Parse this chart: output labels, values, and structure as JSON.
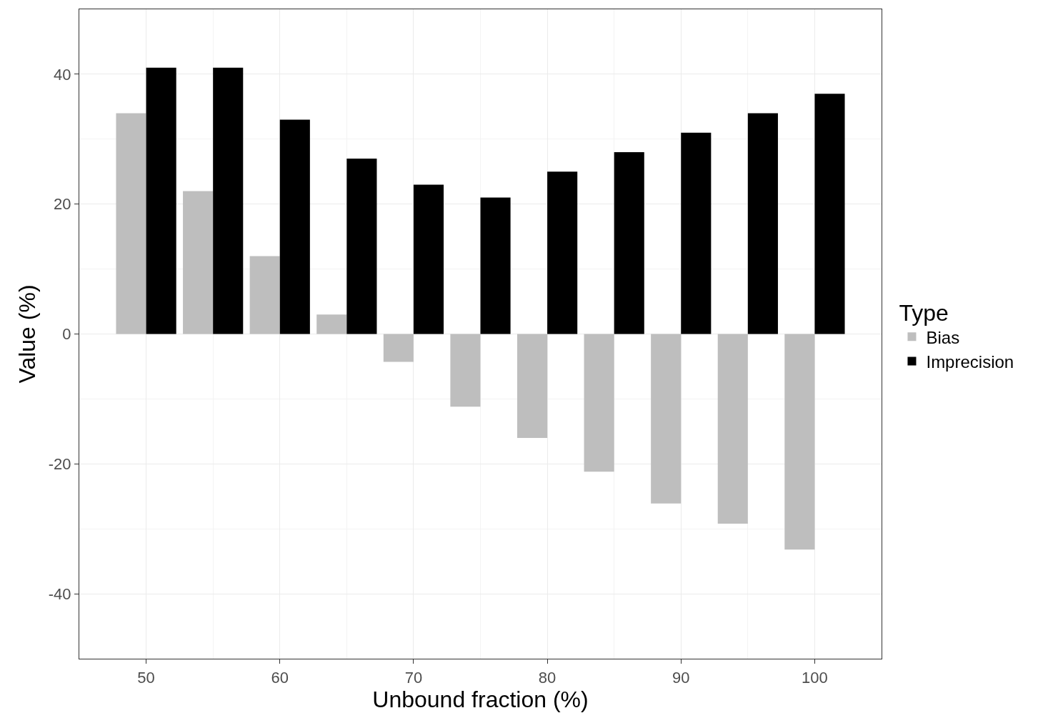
{
  "chart_data": {
    "type": "bar",
    "xlabel": "Unbound fraction (%)",
    "ylabel": "Value (%)",
    "legend_title": "Type",
    "x": [
      50,
      55,
      60,
      65,
      70,
      75,
      80,
      85,
      90,
      95,
      100
    ],
    "series": [
      {
        "name": "Bias",
        "color": "#bebebe",
        "values": [
          34,
          22,
          12,
          3,
          -4.3,
          -11.2,
          -16,
          -21.2,
          -26.1,
          -29.2,
          -33.2
        ]
      },
      {
        "name": "Imprecision",
        "color": "#000000",
        "values": [
          41,
          41,
          33,
          27,
          23,
          21,
          25,
          28,
          31,
          34,
          37
        ]
      }
    ],
    "xlim": [
      45,
      105
    ],
    "ylim": [
      -50,
      50
    ],
    "xticks": [
      50,
      60,
      70,
      80,
      90,
      100
    ],
    "yticks": [
      -40,
      -20,
      0,
      20,
      40
    ],
    "grid": true,
    "legend": "right"
  }
}
